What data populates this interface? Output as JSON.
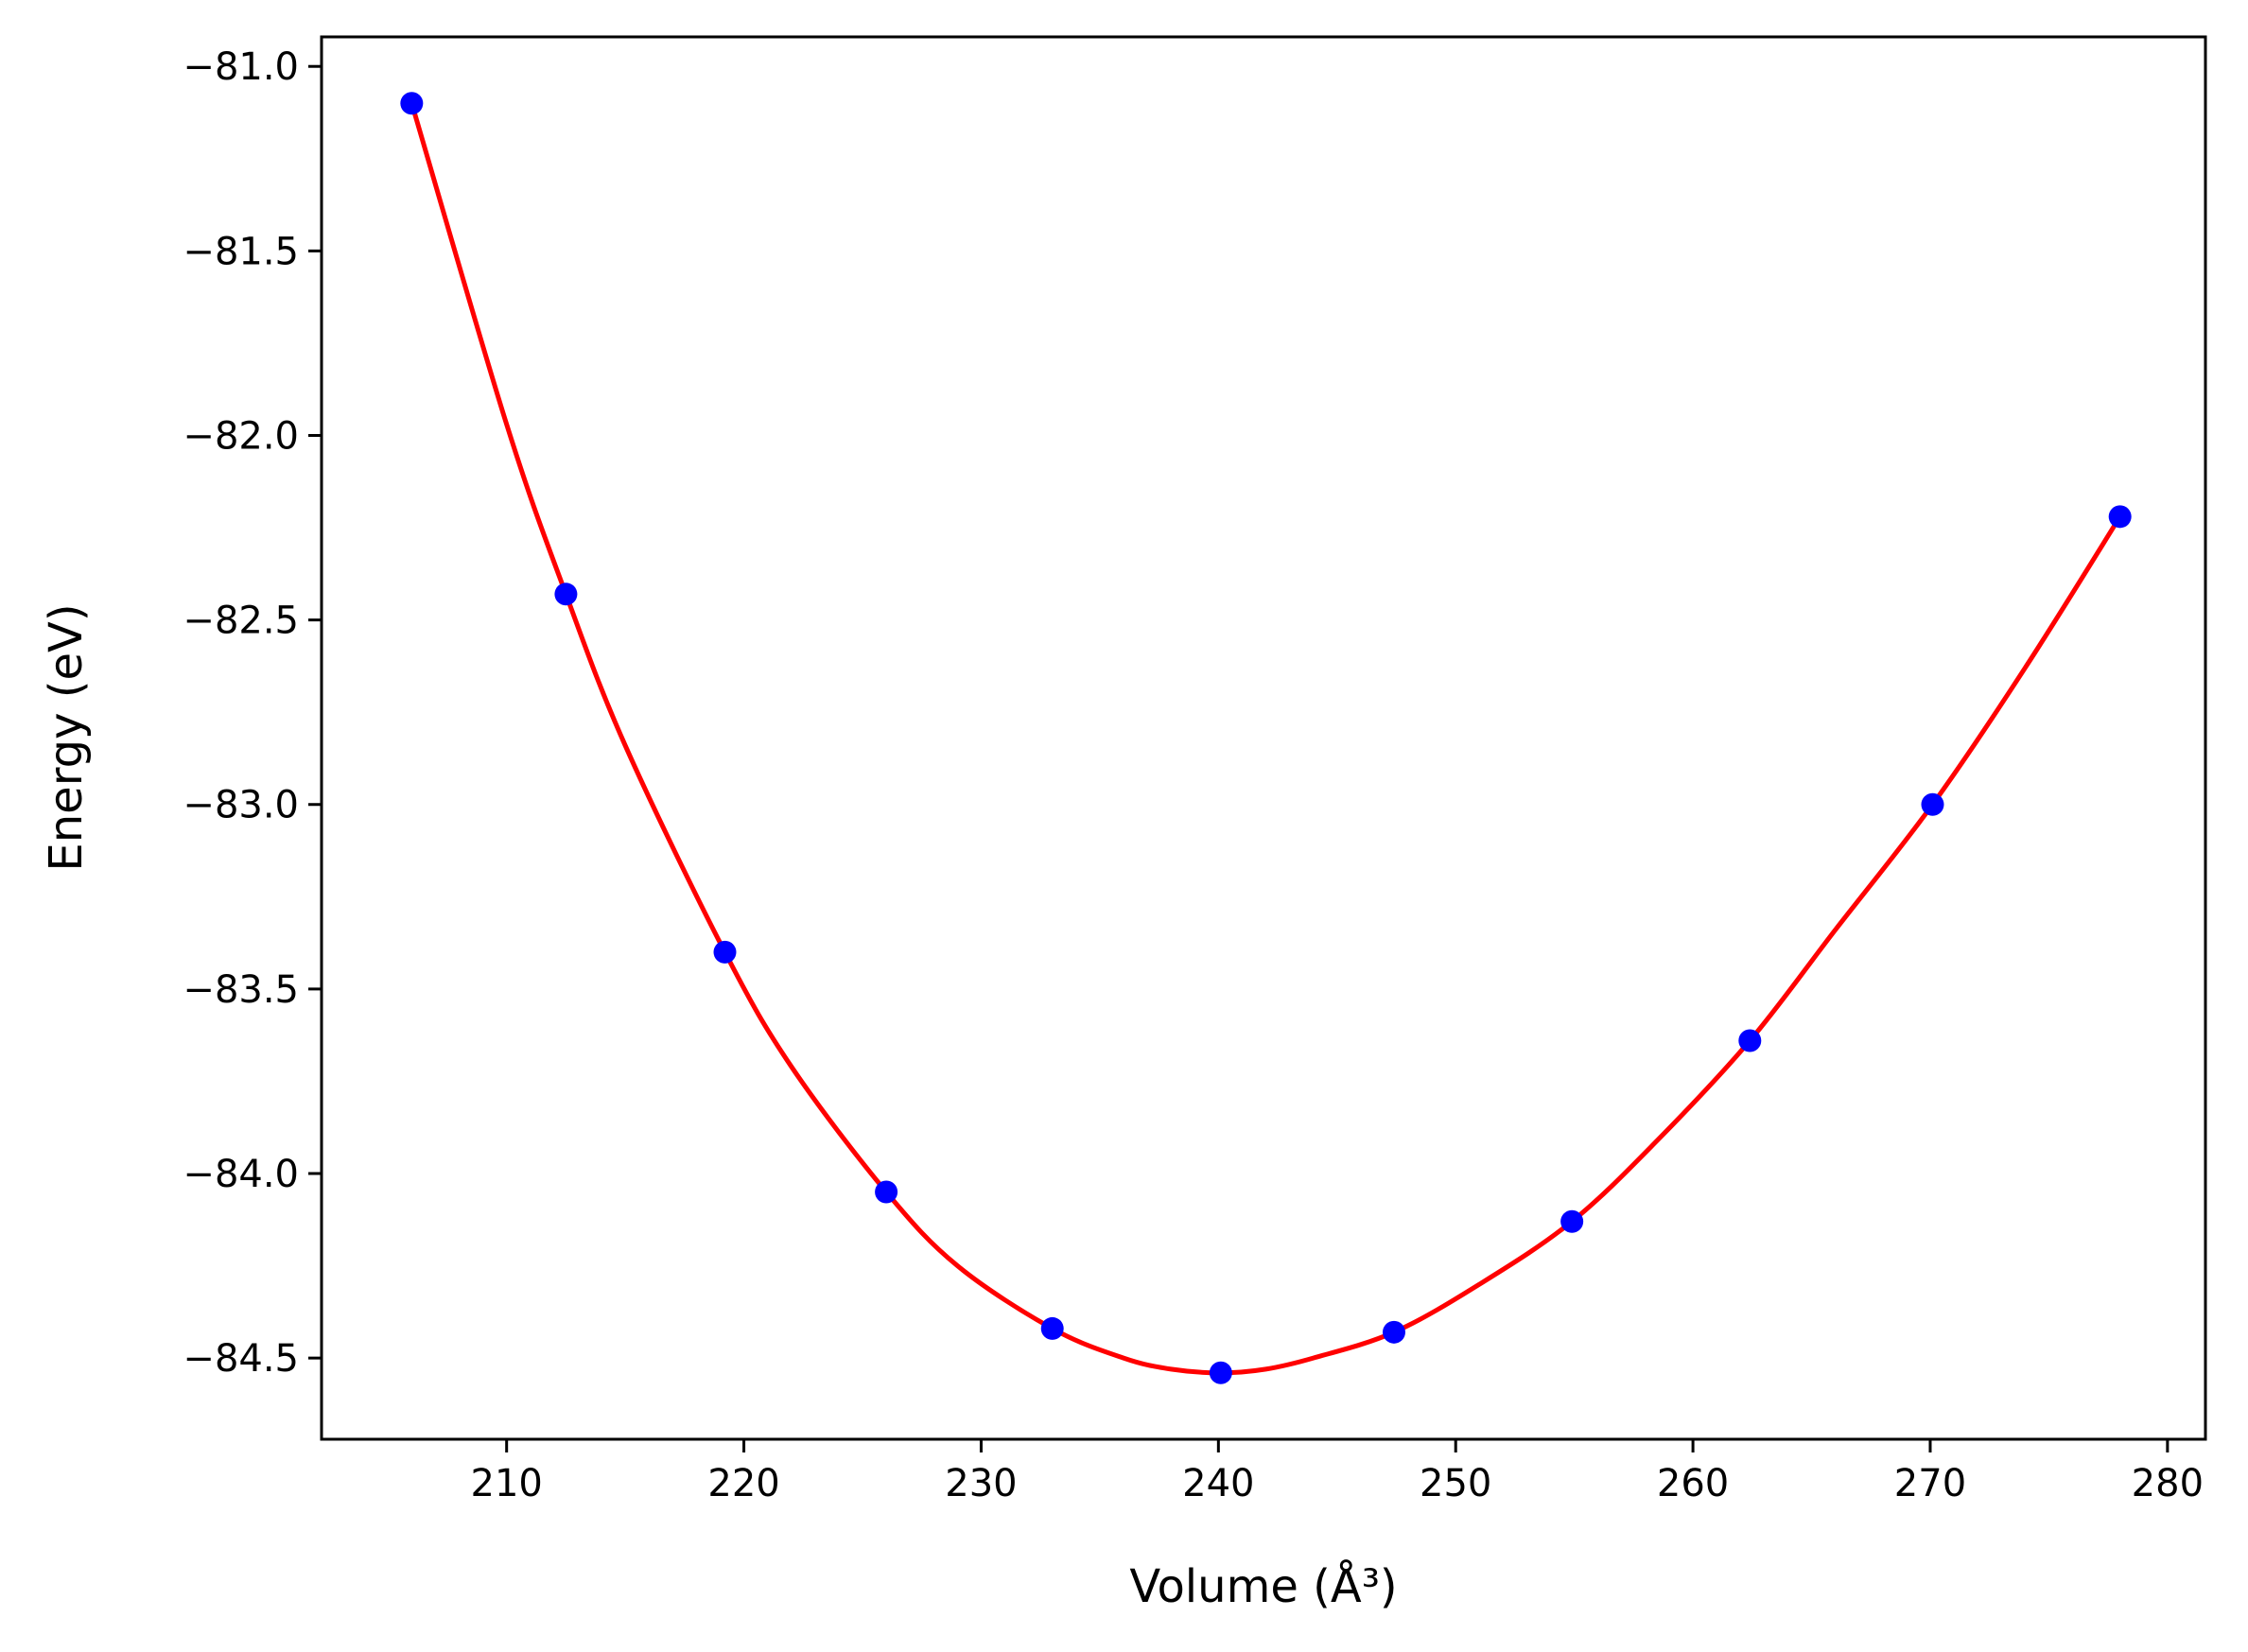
{
  "chart_data": {
    "type": "scatter",
    "title": "",
    "xlabel": "Volume",
    "xlabel_unit": "(Å³)",
    "ylabel": "Energy",
    "ylabel_unit": "(eV)",
    "xlim": [
      202.2,
      281.6
    ],
    "ylim": [
      -84.72,
      -80.92
    ],
    "xticks": [
      210,
      220,
      230,
      240,
      250,
      260,
      270,
      280
    ],
    "yticks": [
      -81.0,
      -81.5,
      -82.0,
      -82.5,
      -83.0,
      -83.5,
      -84.0,
      -84.5
    ],
    "ytick_labels": [
      "−81.0",
      "−81.5",
      "−82.0",
      "−82.5",
      "−83.0",
      "−83.5",
      "−84.0",
      "−84.5"
    ],
    "grid": false,
    "legend": "none",
    "series": [
      {
        "kind": "points",
        "color": "#0000ff",
        "x": [
          206.0,
          212.5,
          219.2,
          226.0,
          233.0,
          240.1,
          247.4,
          254.9,
          262.4,
          270.1,
          278.0
        ],
        "y": [
          -81.1,
          -82.43,
          -83.4,
          -84.05,
          -84.42,
          -84.54,
          -84.43,
          -84.13,
          -83.64,
          -83.0,
          -82.22
        ]
      },
      {
        "kind": "fit-line",
        "color": "#ff0000",
        "x": [
          206.0,
          210.0,
          212.5,
          215.0,
          219.2,
          222.0,
          226.0,
          229.0,
          233.0,
          236.0,
          238.0,
          240.1,
          242.0,
          244.0,
          247.4,
          251.0,
          254.9,
          258.5,
          262.4,
          266.0,
          270.1,
          274.0,
          278.0
        ],
        "y": [
          -81.1,
          -81.97,
          -82.43,
          -82.84,
          -83.4,
          -83.71,
          -84.05,
          -84.25,
          -84.42,
          -84.5,
          -84.53,
          -84.54,
          -84.53,
          -84.5,
          -84.43,
          -84.3,
          -84.13,
          -83.91,
          -83.64,
          -83.34,
          -83.0,
          -82.63,
          -82.22
        ]
      }
    ]
  }
}
